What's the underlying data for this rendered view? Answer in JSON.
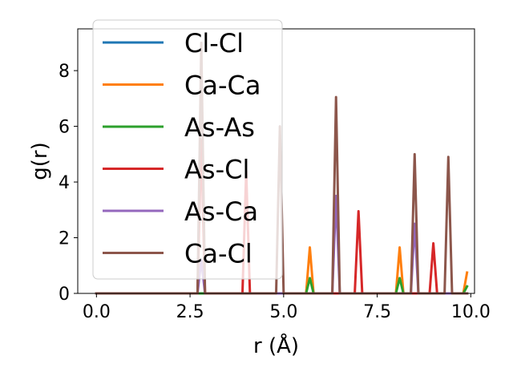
{
  "chart_data": {
    "type": "line",
    "title": "",
    "xlabel": "r (Å)",
    "ylabel": "g(r)",
    "xlim": [
      -0.5,
      10.1
    ],
    "ylim": [
      0,
      9.5
    ],
    "xticks": [
      0.0,
      2.5,
      5.0,
      7.5,
      10.0
    ],
    "xtick_labels": [
      "0.0",
      "2.5",
      "5.0",
      "7.5",
      "10.0"
    ],
    "yticks": [
      0,
      2,
      4,
      6,
      8
    ],
    "ytick_labels": [
      "0",
      "2",
      "4",
      "6",
      "8"
    ],
    "grid": false,
    "legend_position": "top-left",
    "peak_halfwidth": 0.1,
    "series": [
      {
        "name": "Cl-Cl",
        "color": "#1f77b4",
        "peaks": []
      },
      {
        "name": "Ca-Ca",
        "color": "#ff7f0e",
        "peaks": [
          [
            5.7,
            1.65
          ],
          [
            8.1,
            1.65
          ],
          [
            9.9,
            0.75
          ]
        ]
      },
      {
        "name": "As-As",
        "color": "#2ca02c",
        "peaks": [
          [
            5.7,
            0.55
          ],
          [
            8.1,
            0.55
          ],
          [
            9.9,
            0.25
          ]
        ]
      },
      {
        "name": "As-Cl",
        "color": "#d62728",
        "peaks": [
          [
            2.8,
            5.5
          ],
          [
            4.0,
            4.4
          ],
          [
            7.0,
            2.95
          ],
          [
            9.0,
            1.8
          ]
        ]
      },
      {
        "name": "As-Ca",
        "color": "#9467bd",
        "peaks": [
          [
            2.8,
            1.2
          ],
          [
            6.4,
            3.5
          ],
          [
            8.5,
            2.5
          ]
        ]
      },
      {
        "name": "Ca-Cl",
        "color": "#8c564b",
        "peaks": [
          [
            2.8,
            9.0
          ],
          [
            4.9,
            6.0
          ],
          [
            6.4,
            7.05
          ],
          [
            8.5,
            5.0
          ],
          [
            9.4,
            4.9
          ]
        ]
      }
    ]
  }
}
